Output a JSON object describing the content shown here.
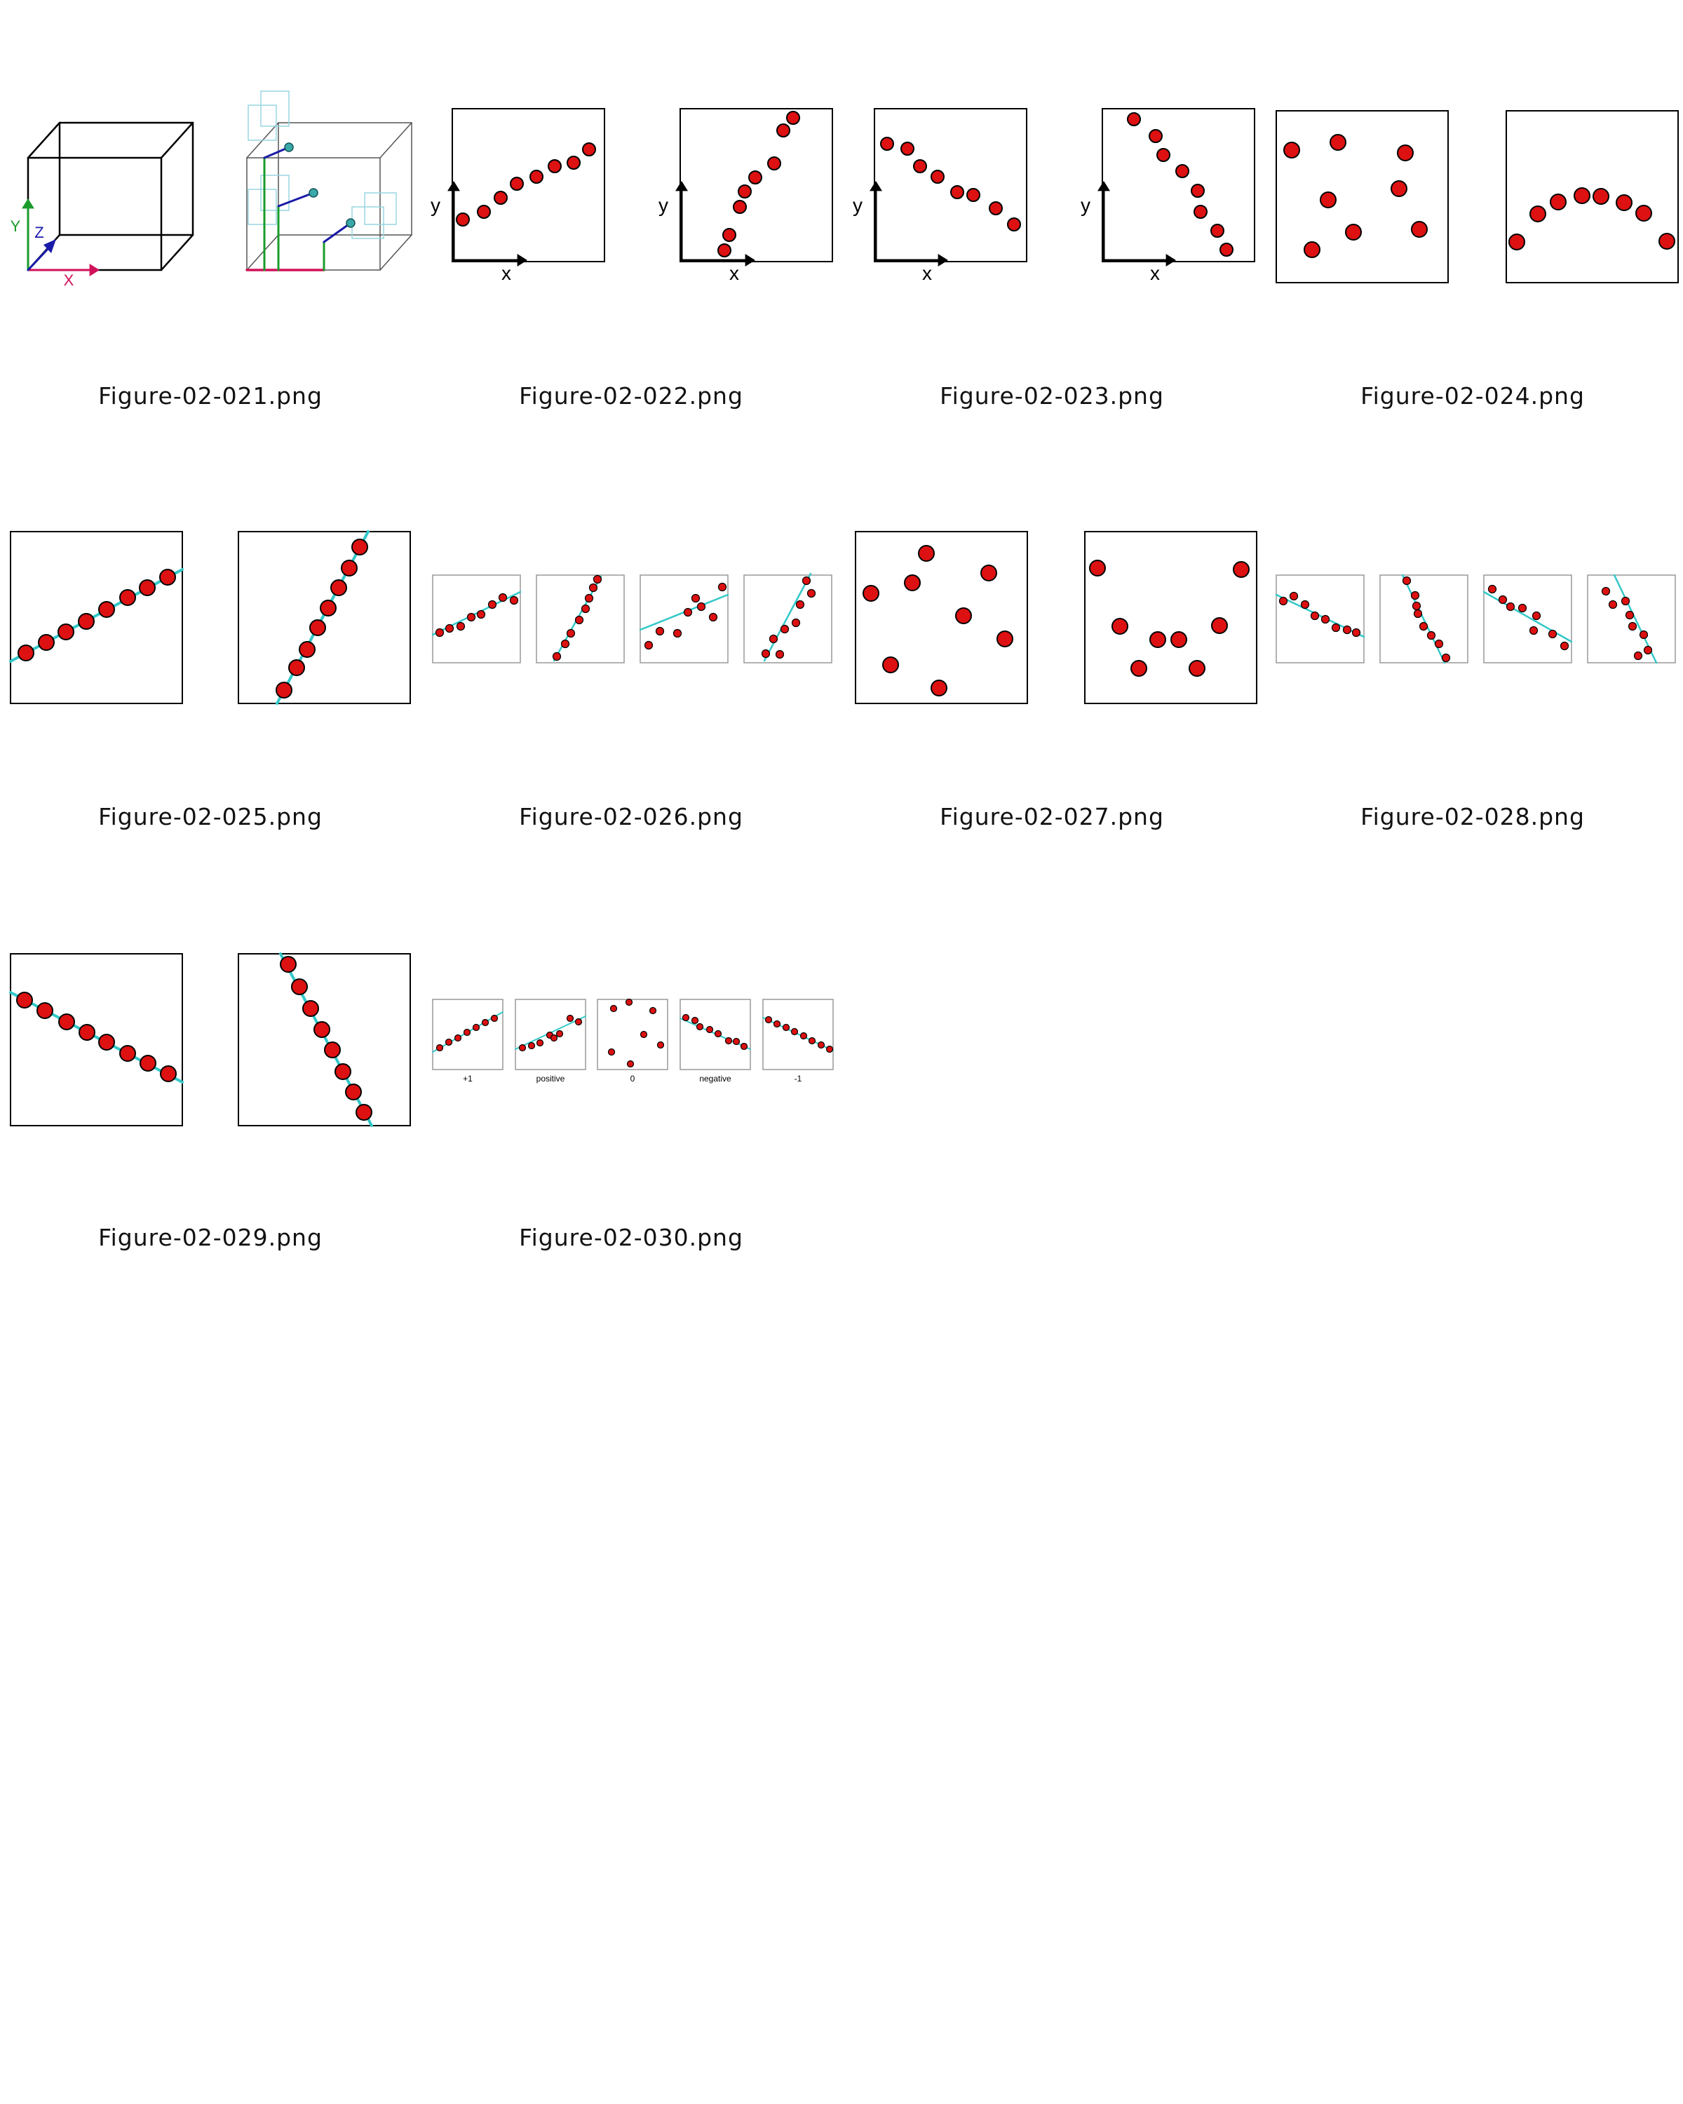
{
  "gallery": {
    "captions": [
      "Figure-02-021.png",
      "Figure-02-022.png",
      "Figure-02-023.png",
      "Figure-02-024.png",
      "Figure-02-025.png",
      "Figure-02-026.png",
      "Figure-02-027.png",
      "Figure-02-028.png",
      "Figure-02-029.png",
      "Figure-02-030.png"
    ]
  },
  "axis_labels": {
    "x": "x",
    "y": "y",
    "z": "Z",
    "x_upper": "X",
    "y_upper": "Y"
  },
  "correlation_labels": [
    "+1",
    "positive",
    "0",
    "negative",
    "-1"
  ],
  "colors": {
    "dot_fill": "#dd1111",
    "dot_stroke": "#000000",
    "fit_line": "#33c8c8",
    "axis_x": "#d0105a",
    "axis_y": "#1a9c2a",
    "axis_z": "#1a1aa8",
    "frame": "#000000",
    "thin_frame": "#999999",
    "ghost": "#99d6e0"
  }
}
